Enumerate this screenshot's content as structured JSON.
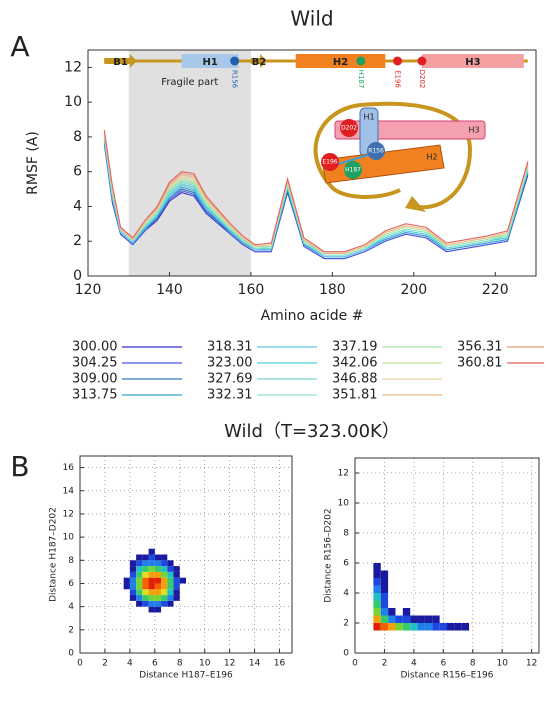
{
  "chart_data": [
    {
      "type": "line",
      "title": "Wild",
      "panel": "A",
      "xlabel": "Amino acide #",
      "ylabel": "RMSF (A)",
      "xlim": [
        120,
        230
      ],
      "ylim": [
        0,
        13
      ],
      "xticks": [
        120,
        140,
        160,
        180,
        200,
        220
      ],
      "yticks": [
        0,
        2,
        4,
        6,
        8,
        10,
        12
      ],
      "shade": {
        "label": "Fragile part",
        "start": 130,
        "end": 160,
        "color": "#e0e0e0"
      },
      "structure": {
        "backbone_color": "#c8961e",
        "segments": [
          {
            "label": "B1",
            "kind": "strand",
            "start": 124,
            "end": 132,
            "color": "#c8961e"
          },
          {
            "label": "H1",
            "kind": "helix",
            "start": 143,
            "end": 157,
            "color": "#a8c8ea"
          },
          {
            "label": "B2",
            "kind": "strand",
            "start": 160,
            "end": 164,
            "color": "#c8961e"
          },
          {
            "label": "H2",
            "kind": "helix",
            "start": 171,
            "end": 193,
            "color": "#f08020"
          },
          {
            "label": "H3",
            "kind": "helix",
            "start": 202,
            "end": 227,
            "color": "#f4a0a0"
          }
        ],
        "sites": [
          {
            "label": "R156",
            "x": 156,
            "color": "#2060b0"
          },
          {
            "label": "H187",
            "x": 187,
            "color": "#20a060"
          },
          {
            "label": "E196",
            "x": 196,
            "color": "#e02020"
          },
          {
            "label": "D202",
            "x": 202,
            "color": "#e02020"
          }
        ]
      },
      "inset_labels": [
        "H1",
        "H3",
        "H2",
        "D202",
        "R156",
        "E196",
        "H187"
      ],
      "x": [
        124,
        126,
        128,
        131,
        134,
        137,
        140,
        143,
        146,
        149,
        152,
        155,
        158,
        161,
        165,
        169,
        173,
        178,
        183,
        188,
        193,
        198,
        203,
        208,
        213,
        218,
        223,
        228
      ],
      "series": [
        {
          "name": "300.00",
          "color": "#3030c8",
          "values": [
            7.6,
            4.2,
            2.4,
            1.8,
            2.6,
            3.2,
            4.3,
            4.8,
            4.6,
            3.6,
            3.0,
            2.4,
            1.8,
            1.4,
            1.4,
            4.8,
            1.7,
            1.0,
            1.0,
            1.4,
            2.0,
            2.4,
            2.2,
            1.4,
            1.6,
            1.8,
            2.0,
            5.8
          ]
        },
        {
          "name": "304.25",
          "color": "#4a58e0",
          "values": [
            7.7,
            4.3,
            2.4,
            1.8,
            2.6,
            3.3,
            4.4,
            4.9,
            4.7,
            3.7,
            3.1,
            2.4,
            1.8,
            1.4,
            1.4,
            4.9,
            1.7,
            1.0,
            1.0,
            1.4,
            2.0,
            2.4,
            2.2,
            1.4,
            1.6,
            1.8,
            2.0,
            5.9
          ]
        },
        {
          "name": "309.00",
          "color": "#2a78c0",
          "values": [
            7.7,
            4.4,
            2.5,
            1.9,
            2.7,
            3.3,
            4.5,
            5.0,
            4.8,
            3.8,
            3.1,
            2.5,
            1.9,
            1.5,
            1.5,
            4.9,
            1.8,
            1.1,
            1.1,
            1.5,
            2.1,
            2.5,
            2.3,
            1.5,
            1.7,
            1.9,
            2.1,
            5.9
          ]
        },
        {
          "name": "313.75",
          "color": "#3aa0d0",
          "values": [
            7.8,
            4.4,
            2.5,
            1.9,
            2.7,
            3.4,
            4.5,
            5.1,
            4.9,
            3.8,
            3.2,
            2.5,
            1.9,
            1.5,
            1.5,
            5.0,
            1.8,
            1.1,
            1.1,
            1.5,
            2.1,
            2.5,
            2.3,
            1.5,
            1.7,
            1.9,
            2.1,
            6.0
          ]
        },
        {
          "name": "318.31",
          "color": "#60c4e8",
          "values": [
            7.9,
            4.5,
            2.5,
            1.9,
            2.8,
            3.5,
            4.6,
            5.2,
            5.0,
            3.9,
            3.3,
            2.6,
            2.0,
            1.5,
            1.6,
            5.1,
            1.9,
            1.1,
            1.1,
            1.5,
            2.2,
            2.6,
            2.4,
            1.6,
            1.8,
            2.0,
            2.2,
            6.1
          ]
        },
        {
          "name": "323.00",
          "color": "#50d0d8",
          "values": [
            7.9,
            4.6,
            2.6,
            2.0,
            2.8,
            3.5,
            4.7,
            5.3,
            5.1,
            4.0,
            3.3,
            2.6,
            2.0,
            1.6,
            1.6,
            5.1,
            1.9,
            1.2,
            1.2,
            1.6,
            2.2,
            2.6,
            2.4,
            1.6,
            1.8,
            2.0,
            2.2,
            6.1
          ]
        },
        {
          "name": "327.69",
          "color": "#78dcd0",
          "values": [
            8.0,
            4.7,
            2.6,
            2.0,
            2.9,
            3.6,
            4.8,
            5.4,
            5.2,
            4.1,
            3.4,
            2.7,
            2.0,
            1.6,
            1.6,
            5.2,
            1.9,
            1.2,
            1.2,
            1.6,
            2.3,
            2.7,
            2.5,
            1.6,
            1.8,
            2.0,
            2.3,
            6.2
          ]
        },
        {
          "name": "332.31",
          "color": "#90e4c8",
          "values": [
            8.0,
            4.7,
            2.6,
            2.0,
            2.9,
            3.6,
            4.9,
            5.5,
            5.3,
            4.1,
            3.4,
            2.7,
            2.1,
            1.6,
            1.7,
            5.2,
            2.0,
            1.2,
            1.2,
            1.6,
            2.3,
            2.7,
            2.5,
            1.7,
            1.9,
            2.1,
            2.3,
            6.2
          ]
        },
        {
          "name": "337.19",
          "color": "#a0e4a8",
          "values": [
            8.1,
            4.8,
            2.7,
            2.1,
            3.0,
            3.7,
            5.0,
            5.5,
            5.4,
            4.2,
            3.5,
            2.8,
            2.1,
            1.7,
            1.7,
            5.3,
            2.0,
            1.3,
            1.3,
            1.7,
            2.4,
            2.8,
            2.6,
            1.7,
            1.9,
            2.1,
            2.4,
            6.3
          ]
        },
        {
          "name": "342.06",
          "color": "#c0e498",
          "values": [
            8.2,
            4.9,
            2.7,
            2.1,
            3.0,
            3.8,
            5.1,
            5.6,
            5.5,
            4.3,
            3.6,
            2.8,
            2.2,
            1.7,
            1.8,
            5.4,
            2.1,
            1.3,
            1.3,
            1.7,
            2.4,
            2.8,
            2.6,
            1.8,
            2.0,
            2.2,
            2.4,
            6.4
          ]
        },
        {
          "name": "346.88",
          "color": "#e8d4a0",
          "values": [
            8.2,
            5.0,
            2.7,
            2.1,
            3.1,
            3.8,
            5.2,
            5.7,
            5.6,
            4.4,
            3.6,
            2.9,
            2.2,
            1.7,
            1.8,
            5.4,
            2.1,
            1.3,
            1.3,
            1.7,
            2.5,
            2.9,
            2.7,
            1.8,
            2.0,
            2.2,
            2.5,
            6.4
          ]
        },
        {
          "name": "351.81",
          "color": "#ecb888",
          "values": [
            8.3,
            5.1,
            2.7,
            2.1,
            3.1,
            3.9,
            5.2,
            5.8,
            5.7,
            4.5,
            3.7,
            2.9,
            2.2,
            1.7,
            1.8,
            5.5,
            2.1,
            1.3,
            1.3,
            1.7,
            2.5,
            2.9,
            2.7,
            1.8,
            2.0,
            2.2,
            2.5,
            6.5
          ]
        },
        {
          "name": "356.31",
          "color": "#ec9a78",
          "values": [
            8.3,
            5.1,
            2.8,
            2.2,
            3.2,
            3.9,
            5.3,
            5.9,
            5.8,
            4.5,
            3.7,
            3.0,
            2.3,
            1.8,
            1.9,
            5.5,
            2.2,
            1.4,
            1.4,
            1.8,
            2.6,
            3.0,
            2.8,
            1.9,
            2.1,
            2.3,
            2.6,
            6.5
          ]
        },
        {
          "name": "360.81",
          "color": "#e06060",
          "values": [
            8.4,
            5.2,
            2.8,
            2.2,
            3.2,
            4.0,
            5.4,
            6.0,
            5.9,
            4.6,
            3.8,
            3.0,
            2.3,
            1.8,
            1.9,
            5.6,
            2.2,
            1.4,
            1.4,
            1.8,
            2.6,
            3.0,
            2.8,
            1.9,
            2.1,
            2.3,
            2.6,
            6.6
          ]
        }
      ]
    },
    {
      "type": "heatmap",
      "title": "Wild（T=323.00K）",
      "panel": "B",
      "xlabel": "Distance H187–E196",
      "ylabel": "Distance H187–D202",
      "xlim": [
        0,
        17
      ],
      "ylim": [
        0,
        17
      ],
      "xticks": [
        0,
        2,
        4,
        6,
        8,
        10,
        12,
        14,
        16
      ],
      "yticks": [
        0,
        2,
        4,
        6,
        8,
        10,
        12,
        14,
        16
      ],
      "grid": true,
      "colormap": [
        "#1a1aa0",
        "#2060ff",
        "#20c0c0",
        "#40d040",
        "#e0e020",
        "#ff8000",
        "#e02000"
      ],
      "xbins": [
        3.5,
        4,
        4.5,
        5,
        5.5,
        6,
        6.5,
        7,
        7.5,
        8,
        8.5
      ],
      "ybins": [
        3.5,
        4,
        4.5,
        5,
        5.5,
        6,
        6.5,
        7,
        7.5,
        8,
        8.5,
        9
      ],
      "z": [
        [
          null,
          null,
          null,
          null,
          0.1,
          0.1,
          null,
          null,
          null,
          null
        ],
        [
          null,
          null,
          0.1,
          0.2,
          0.3,
          0.3,
          0.2,
          0.1,
          null,
          null
        ],
        [
          null,
          0.1,
          0.3,
          0.5,
          0.6,
          0.6,
          0.5,
          0.3,
          0.1,
          null
        ],
        [
          null,
          0.2,
          0.5,
          0.7,
          0.8,
          0.8,
          0.7,
          0.4,
          0.1,
          null
        ],
        [
          0.1,
          0.3,
          0.6,
          0.9,
          1.0,
          0.9,
          0.8,
          0.5,
          0.2,
          null
        ],
        [
          0.1,
          0.3,
          0.6,
          0.9,
          1.0,
          1.0,
          0.8,
          0.5,
          0.2,
          0.1
        ],
        [
          null,
          0.2,
          0.5,
          0.7,
          0.8,
          0.8,
          0.6,
          0.4,
          0.1,
          null
        ],
        [
          null,
          0.1,
          0.4,
          0.5,
          0.6,
          0.5,
          0.4,
          0.2,
          0.1,
          null
        ],
        [
          null,
          0.1,
          0.2,
          0.3,
          0.3,
          0.3,
          0.2,
          0.1,
          null,
          null
        ],
        [
          null,
          null,
          0.1,
          0.1,
          0.2,
          0.1,
          0.1,
          null,
          null,
          null
        ],
        [
          null,
          null,
          null,
          null,
          0.1,
          null,
          null,
          null,
          null,
          null
        ]
      ]
    },
    {
      "type": "heatmap",
      "xlabel": "Distance R156–E196",
      "ylabel": "Distance R156–D202",
      "xlim": [
        0,
        12.5
      ],
      "ylim": [
        0,
        13
      ],
      "xticks": [
        0,
        2,
        4,
        6,
        8,
        10,
        12
      ],
      "yticks": [
        0,
        2,
        4,
        6,
        8,
        10,
        12
      ],
      "grid": true,
      "colormap": [
        "#1a1aa0",
        "#2060ff",
        "#20c0c0",
        "#40d040",
        "#e0e020",
        "#ff8000",
        "#e02000"
      ],
      "xbins": [
        1.25,
        1.75,
        2.25,
        2.75,
        3.25,
        3.75,
        4.25,
        4.75,
        5.25,
        5.75,
        6.25,
        6.75,
        7.25,
        7.75
      ],
      "ybins": [
        1.5,
        2,
        2.5,
        3,
        3.5,
        4,
        4.5,
        5,
        5.5,
        6
      ],
      "z": [
        [
          1.0,
          0.9,
          0.8,
          0.6,
          0.5,
          0.4,
          0.3,
          0.3,
          0.2,
          0.2,
          0.1,
          0.1,
          0.1
        ],
        [
          0.8,
          0.5,
          0.3,
          0.2,
          0.2,
          0.1,
          0.1,
          0.1,
          0.1,
          null,
          null,
          null,
          null
        ],
        [
          0.6,
          0.3,
          0.1,
          null,
          0.1,
          null,
          null,
          null,
          null,
          null,
          null,
          null,
          null
        ],
        [
          0.5,
          0.2,
          null,
          null,
          null,
          null,
          null,
          null,
          null,
          null,
          null,
          null,
          null
        ],
        [
          0.4,
          0.2,
          null,
          null,
          null,
          null,
          null,
          null,
          null,
          null,
          null,
          null,
          null
        ],
        [
          0.3,
          0.1,
          null,
          null,
          null,
          null,
          null,
          null,
          null,
          null,
          null,
          null,
          null
        ],
        [
          0.2,
          0.1,
          null,
          null,
          null,
          null,
          null,
          null,
          null,
          null,
          null,
          null,
          null
        ],
        [
          0.1,
          0.1,
          null,
          null,
          null,
          null,
          null,
          null,
          null,
          null,
          null,
          null,
          null
        ],
        [
          0.1,
          null,
          null,
          null,
          null,
          null,
          null,
          null,
          null,
          null,
          null,
          null,
          null
        ]
      ]
    }
  ]
}
